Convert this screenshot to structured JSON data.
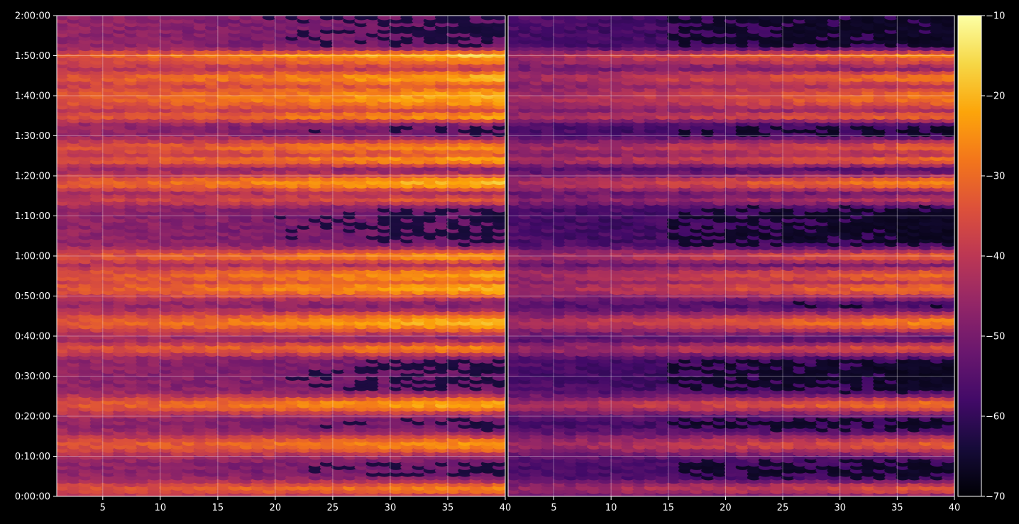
{
  "chart_data": {
    "type": "heatmap",
    "colormap": "inferno",
    "background": "#000000",
    "grid": true,
    "panels": [
      {
        "name": "",
        "xlim": [
          1,
          40
        ],
        "xticks": [
          5,
          10,
          15,
          20,
          25,
          30,
          35,
          40
        ],
        "xtick_labels": [
          "5",
          "10",
          "15",
          "20",
          "25",
          "30",
          "35",
          "40"
        ]
      },
      {
        "name": "",
        "xlim": [
          1,
          40
        ],
        "xticks": [
          5,
          10,
          15,
          20,
          25,
          30,
          35,
          40
        ],
        "xtick_labels": [
          "5",
          "10",
          "15",
          "20",
          "25",
          "30",
          "35",
          "40"
        ]
      }
    ],
    "y_axis": {
      "unit_seconds": true,
      "ylim": [
        0,
        7200
      ],
      "ticks": [
        0,
        600,
        1200,
        1800,
        2400,
        3000,
        3600,
        4200,
        4800,
        5400,
        6000,
        6600,
        7200
      ],
      "tick_labels": [
        "0:00:00",
        "0:10:00",
        "0:20:00",
        "0:30:00",
        "0:40:00",
        "0:50:00",
        "1:00:00",
        "1:10:00",
        "1:20:00",
        "1:30:00",
        "1:40:00",
        "1:50:00",
        "2:00:00"
      ]
    },
    "colorbar": {
      "range": [
        -70,
        -10
      ],
      "ticks": [
        -10,
        -20,
        -30,
        -40,
        -50,
        -60,
        -70
      ],
      "tick_labels": [
        "−10",
        "−20",
        "−30",
        "−40",
        "−50",
        "−60",
        "−70"
      ]
    },
    "bright_bands_seconds": [
      120,
      780,
      1380,
      2220,
      2610,
      3120,
      3310,
      3600,
      4450,
      4700,
      5050,
      5230,
      5700,
      5980,
      6270,
      6520,
      6600
    ],
    "band_strength": [
      0.75,
      0.8,
      0.9,
      0.75,
      0.95,
      0.9,
      0.85,
      0.8,
      0.55,
      0.95,
      0.85,
      0.8,
      0.85,
      0.9,
      0.9,
      0.7,
      1.0
    ],
    "band_width_seconds": [
      120,
      160,
      140,
      110,
      170,
      160,
      160,
      120,
      90,
      140,
      110,
      130,
      90,
      260,
      150,
      110,
      90
    ],
    "panel_fade": [
      [
        1,
        0.55
      ],
      [
        0.38,
        0.1
      ]
    ],
    "panel_low_threshold": [
      0.2,
      0.1
    ]
  }
}
